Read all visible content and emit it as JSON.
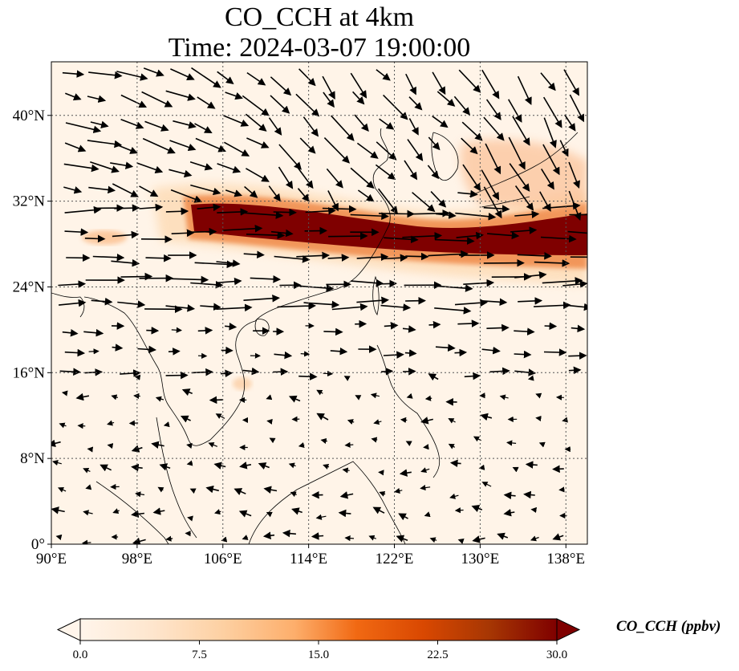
{
  "title_line1": "CO_CCH at 4km",
  "title_line2": "Time: 2024-03-07 19:00:00",
  "map": {
    "lon_range": [
      90,
      140
    ],
    "lat_range": [
      0,
      45
    ],
    "lon_ticks": [
      90,
      98,
      106,
      114,
      122,
      130,
      138
    ],
    "lat_ticks": [
      0,
      8,
      16,
      24,
      32,
      40
    ],
    "lon_tick_labels": [
      "90°E",
      "98°E",
      "106°E",
      "114°E",
      "122°E",
      "130°E",
      "138°E"
    ],
    "lat_tick_labels": [
      "0°",
      "8°N",
      "16°N",
      "24°N",
      "32°N",
      "40°N"
    ],
    "gridlines": "dotted",
    "field_band": {
      "description_lon": [
        102,
        140
      ],
      "peak_lat_at_104E": 30.2,
      "peak_lat_at_140E": 28.5
    },
    "wind_field_direction": "westerly"
  },
  "colorbar": {
    "label": "CO_CCH (ppbv)",
    "ticks": [
      "0.0",
      "7.5",
      "15.0",
      "22.5",
      "30.0"
    ],
    "min": 0,
    "max": 30,
    "colormap": [
      "#fff5eb",
      "#fee6ce",
      "#fdd0a2",
      "#fdae6b",
      "#fd8d3c",
      "#f16913",
      "#d94801",
      "#a63603",
      "#7f0000"
    ],
    "extend": "both"
  }
}
